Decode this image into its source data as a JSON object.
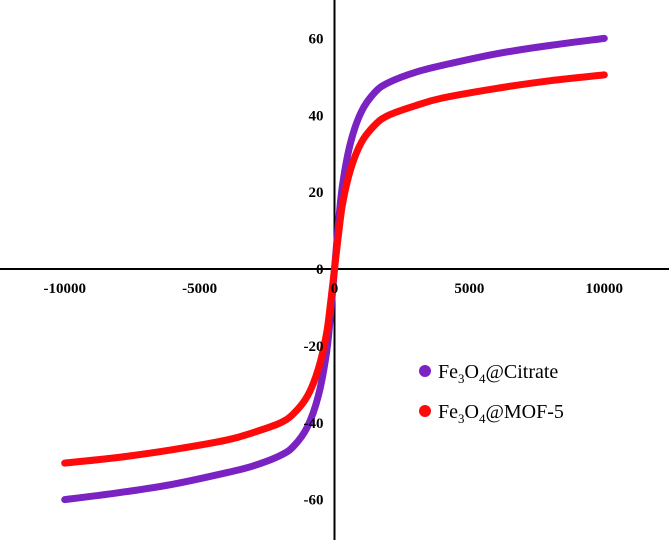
{
  "chart_data": {
    "type": "line",
    "title": "",
    "xlabel": "",
    "ylabel": "",
    "xlim": [
      -12400,
      12400
    ],
    "ylim": [
      -70.5,
      70
    ],
    "x_ticks": [
      -10000,
      -5000,
      0,
      5000,
      10000
    ],
    "x_tick_labels": [
      "-10000",
      "-5000",
      "0",
      "5000",
      "10000"
    ],
    "y_ticks": [
      -60,
      -40,
      -20,
      0,
      20,
      40,
      60
    ],
    "y_tick_labels": [
      "-60",
      "-40",
      "-20",
      "0",
      "20",
      "40",
      "60"
    ],
    "grid": false,
    "legend_position": "lower-right",
    "series": [
      {
        "name": "Fe3O4@Citrate",
        "color": "#7b22c2",
        "x": [
          -10000,
          -8000,
          -6000,
          -4000,
          -3000,
          -2000,
          -1500,
          -1000,
          -600,
          -300,
          -150,
          0,
          150,
          300,
          600,
          1000,
          1500,
          2000,
          3000,
          4000,
          6000,
          8000,
          10000
        ],
        "y": [
          -60,
          -58.2,
          -56,
          -53,
          -51.2,
          -48.5,
          -46,
          -41,
          -33,
          -22,
          -12,
          0,
          12,
          22,
          33,
          41,
          46,
          48.5,
          51.2,
          53,
          56,
          58.2,
          60
        ]
      },
      {
        "name": "Fe3O4@MOF-5",
        "color": "#ff0a0a",
        "x": [
          -10000,
          -8000,
          -6000,
          -4000,
          -3000,
          -2000,
          -1500,
          -1000,
          -600,
          -300,
          -150,
          0,
          150,
          300,
          600,
          1000,
          1500,
          2000,
          3000,
          4000,
          6000,
          8000,
          10000
        ],
        "y": [
          -50.5,
          -49,
          -47,
          -44.5,
          -42.5,
          -40,
          -37.5,
          -33,
          -26,
          -17,
          -9,
          0,
          9,
          17,
          26,
          33,
          37.5,
          40,
          42.5,
          44.5,
          47,
          49,
          50.5
        ]
      }
    ],
    "legend": [
      {
        "base": "Fe",
        "sub1": "3",
        "mid": "O",
        "sub2": "4",
        "rest": "@Citrate",
        "color": "#7b22c2"
      },
      {
        "base": "Fe",
        "sub1": "3",
        "mid": "O",
        "sub2": "4",
        "rest": "@MOF-5",
        "color": "#ff0a0a"
      }
    ]
  }
}
